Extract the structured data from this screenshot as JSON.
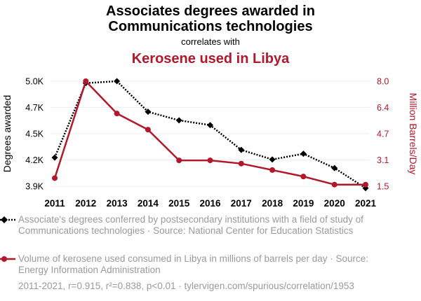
{
  "title_line1": "Associates degrees awarded in",
  "title_line2": "Communications technologies",
  "correlates_with": "correlates with",
  "subtitle": "Kerosene used in Libya",
  "legend": {
    "series1": "Associate's degrees conferred by postsecondary institutions with a field of study of Communications technologies · Source: National Center for Education Statistics",
    "series2": "Volume of kerosene used consumed in Libya in millions of barrels per day · Source: Energy Information Administration"
  },
  "footer": "2011-2021, r=0.915, r²=0.838, p<0.01 · tylervigen.com/spurious/correlation/1953",
  "colors": {
    "series1": "#000000",
    "series2": "#b2182b",
    "grid": "#eeeeee",
    "muted": "#9a9a9a"
  },
  "chart_data": {
    "type": "line",
    "x": [
      "2011",
      "2012",
      "2013",
      "2014",
      "2015",
      "2016",
      "2017",
      "2018",
      "2019",
      "2020",
      "2021"
    ],
    "xlabel": "",
    "grid": "horizontal",
    "y_left": {
      "label": "Degrees awarded",
      "ticks": [
        "5.0K",
        "4.7K",
        "4.5K",
        "4.2K",
        "3.9K"
      ],
      "tick_values": [
        5000,
        4700,
        4500,
        4200,
        3900
      ],
      "range": [
        3900,
        5000
      ]
    },
    "y_right": {
      "label": "Million Barrels/Day",
      "ticks": [
        "8.0",
        "6.4",
        "4.7",
        "3.1",
        "1.5"
      ],
      "tick_values": [
        8.0,
        6.4,
        4.7,
        3.1,
        1.5
      ],
      "range": [
        1.5,
        8.0
      ]
    },
    "series": [
      {
        "axis": "left",
        "style": "dotted",
        "marker": "diamond",
        "values": [
          4200,
          4980,
          5000,
          4680,
          4590,
          4540,
          4280,
          4180,
          4240,
          4090,
          3880
        ]
      },
      {
        "axis": "right",
        "style": "solid",
        "marker": "circle",
        "values": [
          2.0,
          8.0,
          6.0,
          5.0,
          3.1,
          3.1,
          2.9,
          2.5,
          2.1,
          1.6,
          1.6
        ]
      }
    ]
  }
}
